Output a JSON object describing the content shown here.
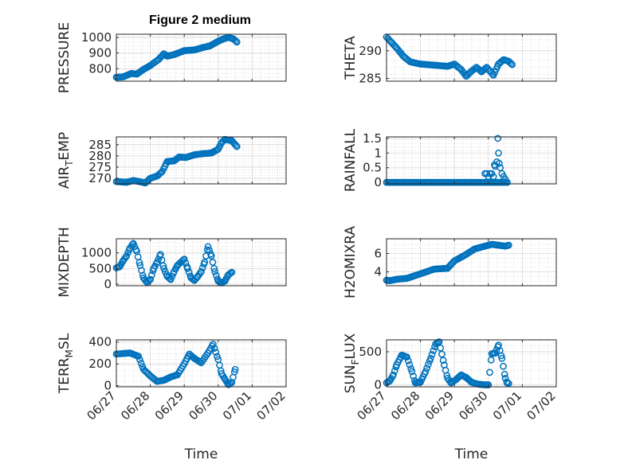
{
  "figure": {
    "title": "Figure 2 medium",
    "marker_color": "#0072BD",
    "axis_color": "#262626",
    "grid_color": "#d9d9d9"
  },
  "chart_data": [
    {
      "type": "scatter",
      "ylabel": "PRESSURE",
      "ylim": [
        720,
        1020
      ],
      "yticks": [
        800,
        900,
        1000
      ],
      "xlim": [
        0,
        5
      ],
      "xticks": [
        0,
        1,
        2,
        3,
        4,
        5
      ],
      "xtick_labels": [
        "06/27",
        "06/28",
        "06/29",
        "06/30",
        "07/01",
        "07/02"
      ],
      "show_xtick_labels": false,
      "grid": true,
      "keypoints": [
        [
          0,
          745
        ],
        [
          0.2,
          748
        ],
        [
          0.45,
          770
        ],
        [
          0.6,
          765
        ],
        [
          0.8,
          795
        ],
        [
          1,
          820
        ],
        [
          1.25,
          860
        ],
        [
          1.4,
          895
        ],
        [
          1.5,
          880
        ],
        [
          1.7,
          890
        ],
        [
          2,
          915
        ],
        [
          2.3,
          920
        ],
        [
          2.55,
          935
        ],
        [
          2.75,
          945
        ],
        [
          3,
          975
        ],
        [
          3.15,
          990
        ],
        [
          3.3,
          1000
        ],
        [
          3.45,
          990
        ],
        [
          3.55,
          970
        ]
      ]
    },
    {
      "type": "scatter",
      "ylabel": "THETA",
      "ylim": [
        284.5,
        293
      ],
      "yticks": [
        285,
        290
      ],
      "xlim": [
        0,
        5
      ],
      "xticks": [
        0,
        1,
        2,
        3,
        4,
        5
      ],
      "xtick_labels": [
        "06/27",
        "06/28",
        "06/29",
        "06/30",
        "07/01",
        "07/02"
      ],
      "show_xtick_labels": false,
      "grid": true,
      "keypoints": [
        [
          0,
          292.5
        ],
        [
          0.15,
          291.5
        ],
        [
          0.3,
          290.5
        ],
        [
          0.5,
          289
        ],
        [
          0.7,
          288
        ],
        [
          1,
          287.6
        ],
        [
          1.4,
          287.4
        ],
        [
          1.8,
          287.2
        ],
        [
          2,
          287.6
        ],
        [
          2.2,
          286.6
        ],
        [
          2.35,
          285.4
        ],
        [
          2.5,
          286.3
        ],
        [
          2.65,
          287
        ],
        [
          2.8,
          286.2
        ],
        [
          2.95,
          287
        ],
        [
          3.05,
          286.3
        ],
        [
          3.15,
          285.6
        ],
        [
          3.3,
          287.6
        ],
        [
          3.45,
          288.4
        ],
        [
          3.6,
          288.1
        ],
        [
          3.7,
          287.5
        ]
      ]
    },
    {
      "type": "scatter",
      "ylabel": "AIR_TEMP",
      "ylabel_main": "AIR",
      "ylabel_sub": "T",
      "ylabel_rest": "EMP",
      "ylim": [
        267.5,
        288.5
      ],
      "yticks": [
        270,
        275,
        280,
        285
      ],
      "xlim": [
        0,
        5
      ],
      "xticks": [
        0,
        1,
        2,
        3,
        4,
        5
      ],
      "xtick_labels": [
        "06/27",
        "06/28",
        "06/29",
        "06/30",
        "07/01",
        "07/02"
      ],
      "show_xtick_labels": false,
      "grid": true,
      "keypoints": [
        [
          0,
          268.5
        ],
        [
          0.3,
          268.2
        ],
        [
          0.5,
          269
        ],
        [
          0.65,
          268.6
        ],
        [
          0.85,
          267.9
        ],
        [
          1,
          270
        ],
        [
          1.2,
          271
        ],
        [
          1.35,
          273
        ],
        [
          1.5,
          277.5
        ],
        [
          1.7,
          277.8
        ],
        [
          1.85,
          279.5
        ],
        [
          2.05,
          279.3
        ],
        [
          2.3,
          280.5
        ],
        [
          2.55,
          281
        ],
        [
          2.8,
          281.3
        ],
        [
          3,
          283
        ],
        [
          3.1,
          286
        ],
        [
          3.2,
          287.4
        ],
        [
          3.4,
          286.8
        ],
        [
          3.55,
          284.2
        ]
      ]
    },
    {
      "type": "scatter",
      "ylabel": "RAINFALL",
      "ylim": [
        -0.05,
        1.55
      ],
      "yticks": [
        0,
        0.5,
        1,
        1.5
      ],
      "ytick_labels": [
        "0",
        "0.5",
        "1",
        "1.5"
      ],
      "xlim": [
        0,
        5
      ],
      "xticks": [
        0,
        1,
        2,
        3,
        4,
        5
      ],
      "xtick_labels": [
        "06/27",
        "06/28",
        "06/29",
        "06/30",
        "07/01",
        "07/02"
      ],
      "show_xtick_labels": false,
      "grid": true,
      "points": [
        [
          2.9,
          0.3
        ],
        [
          2.95,
          0.3
        ],
        [
          3.0,
          0.2
        ],
        [
          3.05,
          0.3
        ],
        [
          3.1,
          0.3
        ],
        [
          3.15,
          0.2
        ],
        [
          3.18,
          0.6
        ],
        [
          3.2,
          0.55
        ],
        [
          3.25,
          0.7
        ],
        [
          3.28,
          1.5
        ],
        [
          3.3,
          1.0
        ],
        [
          3.32,
          0.65
        ],
        [
          3.35,
          0.5
        ],
        [
          3.4,
          0.3
        ],
        [
          3.45,
          0.2
        ],
        [
          3.5,
          0.1
        ]
      ],
      "baseline": [
        0,
        3.6,
        0
      ]
    },
    {
      "type": "scatter",
      "ylabel": "MIXDEPTH",
      "ylim": [
        -50,
        1450
      ],
      "yticks": [
        0,
        500,
        1000
      ],
      "xlim": [
        0,
        5
      ],
      "xticks": [
        0,
        1,
        2,
        3,
        4,
        5
      ],
      "xtick_labels": [
        "06/27",
        "06/28",
        "06/29",
        "06/30",
        "07/01",
        "07/02"
      ],
      "show_xtick_labels": false,
      "grid": true,
      "keypoints": [
        [
          0,
          520
        ],
        [
          0.1,
          560
        ],
        [
          0.2,
          750
        ],
        [
          0.3,
          900
        ],
        [
          0.4,
          1150
        ],
        [
          0.5,
          1300
        ],
        [
          0.6,
          1050
        ],
        [
          0.7,
          600
        ],
        [
          0.8,
          200
        ],
        [
          0.9,
          60
        ],
        [
          1,
          150
        ],
        [
          1.1,
          500
        ],
        [
          1.2,
          700
        ],
        [
          1.3,
          950
        ],
        [
          1.4,
          500
        ],
        [
          1.5,
          250
        ],
        [
          1.6,
          150
        ],
        [
          1.7,
          400
        ],
        [
          1.8,
          600
        ],
        [
          1.9,
          700
        ],
        [
          2,
          800
        ],
        [
          2.1,
          500
        ],
        [
          2.2,
          200
        ],
        [
          2.3,
          120
        ],
        [
          2.4,
          250
        ],
        [
          2.5,
          400
        ],
        [
          2.6,
          700
        ],
        [
          2.7,
          1200
        ],
        [
          2.8,
          900
        ],
        [
          2.9,
          400
        ],
        [
          3,
          100
        ],
        [
          3.1,
          40
        ],
        [
          3.2,
          100
        ],
        [
          3.3,
          300
        ],
        [
          3.4,
          380
        ]
      ]
    },
    {
      "type": "scatter",
      "ylabel": "H2OMIXRA",
      "ylim": [
        2.5,
        7.6
      ],
      "yticks": [
        4,
        6
      ],
      "xlim": [
        0,
        5
      ],
      "xticks": [
        0,
        1,
        2,
        3,
        4,
        5
      ],
      "xtick_labels": [
        "06/27",
        "06/28",
        "06/29",
        "06/30",
        "07/01",
        "07/02"
      ],
      "show_xtick_labels": false,
      "grid": true,
      "keypoints": [
        [
          0,
          3.1
        ],
        [
          0.1,
          3.05
        ],
        [
          0.3,
          3.2
        ],
        [
          0.6,
          3.3
        ],
        [
          1,
          3.8
        ],
        [
          1.4,
          4.3
        ],
        [
          1.8,
          4.4
        ],
        [
          2,
          5.2
        ],
        [
          2.3,
          5.8
        ],
        [
          2.6,
          6.5
        ],
        [
          2.9,
          6.8
        ],
        [
          3.1,
          7.0
        ],
        [
          3.3,
          6.9
        ],
        [
          3.5,
          6.8
        ],
        [
          3.6,
          6.9
        ]
      ]
    },
    {
      "type": "scatter",
      "ylabel": "TERR_MSL",
      "ylabel_main": "TERR",
      "ylabel_sub": "M",
      "ylabel_rest": "SL",
      "ylim": [
        -10,
        420
      ],
      "yticks": [
        0,
        200,
        400
      ],
      "xlim": [
        0,
        5
      ],
      "xticks": [
        0,
        1,
        2,
        3,
        4,
        5
      ],
      "xtick_labels": [
        "06/27",
        "06/28",
        "06/29",
        "06/30",
        "07/01",
        "07/02"
      ],
      "show_xtick_labels": true,
      "xlabel": "Time",
      "grid": true,
      "keypoints": [
        [
          0,
          290
        ],
        [
          0.4,
          300
        ],
        [
          0.65,
          270
        ],
        [
          0.8,
          150
        ],
        [
          1,
          90
        ],
        [
          1.2,
          40
        ],
        [
          1.4,
          50
        ],
        [
          1.6,
          80
        ],
        [
          1.8,
          100
        ],
        [
          2,
          200
        ],
        [
          2.15,
          290
        ],
        [
          2.3,
          250
        ],
        [
          2.5,
          210
        ],
        [
          2.7,
          300
        ],
        [
          2.85,
          380
        ],
        [
          3,
          240
        ],
        [
          3.1,
          110
        ],
        [
          3.2,
          60
        ],
        [
          3.3,
          10
        ],
        [
          3.4,
          30
        ],
        [
          3.5,
          150
        ]
      ]
    },
    {
      "type": "scatter",
      "ylabel": "SUN_FLUX",
      "ylabel_main": "SUN",
      "ylabel_sub": "F",
      "ylabel_rest": "LUX",
      "ylim": [
        -30,
        680
      ],
      "yticks": [
        0,
        500
      ],
      "xlim": [
        0,
        5
      ],
      "xticks": [
        0,
        1,
        2,
        3,
        4,
        5
      ],
      "xtick_labels": [
        "06/27",
        "06/28",
        "06/29",
        "06/30",
        "07/01",
        "07/02"
      ],
      "show_xtick_labels": true,
      "xlabel": "Time",
      "grid": true,
      "keypoints": [
        [
          0,
          30
        ],
        [
          0.1,
          60
        ],
        [
          0.2,
          150
        ],
        [
          0.3,
          300
        ],
        [
          0.45,
          450
        ],
        [
          0.6,
          420
        ],
        [
          0.75,
          200
        ],
        [
          0.85,
          30
        ],
        [
          1,
          40
        ],
        [
          1.15,
          200
        ],
        [
          1.3,
          400
        ],
        [
          1.45,
          620
        ],
        [
          1.55,
          650
        ],
        [
          1.7,
          300
        ],
        [
          1.8,
          100
        ],
        [
          1.9,
          30
        ],
        [
          2.05,
          80
        ],
        [
          2.2,
          150
        ],
        [
          2.35,
          110
        ],
        [
          2.5,
          40
        ],
        [
          2.7,
          10
        ],
        [
          2.9,
          0
        ],
        [
          3.0,
          0
        ],
        [
          3.1,
          470
        ],
        [
          3.2,
          480
        ],
        [
          3.3,
          600
        ],
        [
          3.4,
          400
        ],
        [
          3.5,
          100
        ],
        [
          3.55,
          30
        ],
        [
          3.6,
          20
        ]
      ]
    }
  ]
}
